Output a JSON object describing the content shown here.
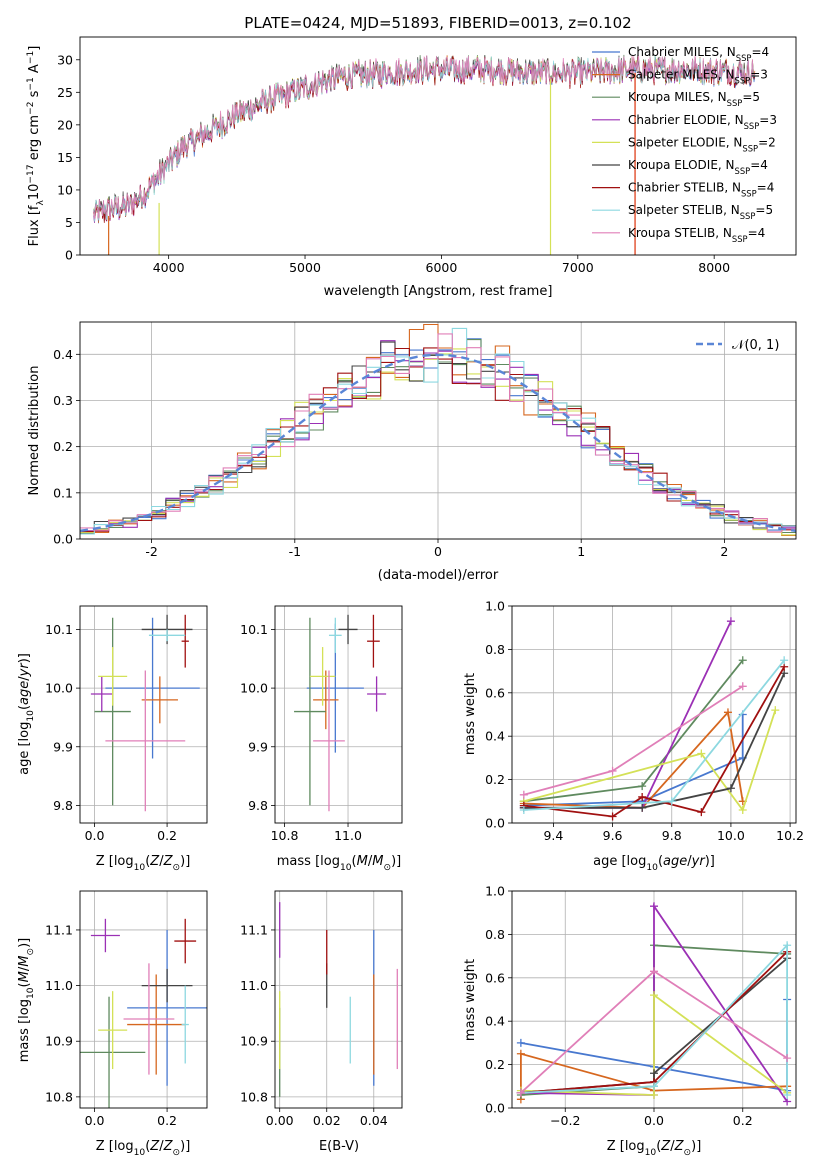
{
  "palette": [
    "#4878cf",
    "#d6671f",
    "#5f8a5f",
    "#9b30b5",
    "#d4e157",
    "#444444",
    "#a01010",
    "#8dd8e0",
    "#e07fb8"
  ],
  "chart_data": [
    {
      "id": "spectrum",
      "type": "line",
      "title": "PLATE=0424, MJD=51893, FIBERID=0013, z=0.102",
      "xlabel": "wavelength [Angstrom, rest frame]",
      "ylabel": "Flux [f_λ 10^-17 erg cm^-2 s^-1 A^-1]",
      "xlim": [
        3350,
        8600
      ],
      "ylim": [
        0,
        33.5
      ],
      "xticks": [
        4000,
        5000,
        6000,
        7000,
        8000
      ],
      "yticks": [
        0,
        5,
        10,
        15,
        20,
        25,
        30
      ],
      "continuum": [
        [
          3450,
          6.2
        ],
        [
          3550,
          7.0
        ],
        [
          3700,
          7.5
        ],
        [
          3800,
          9.0
        ],
        [
          3900,
          11.5
        ],
        [
          4000,
          14.0
        ],
        [
          4100,
          16.5
        ],
        [
          4300,
          19.0
        ],
        [
          4500,
          21.5
        ],
        [
          4700,
          23.5
        ],
        [
          4900,
          25.0
        ],
        [
          5100,
          26.5
        ],
        [
          5300,
          27.5
        ],
        [
          5600,
          28.0
        ],
        [
          5900,
          28.5
        ],
        [
          6300,
          28.5
        ],
        [
          6700,
          28.0
        ],
        [
          7000,
          28.0
        ],
        [
          7400,
          28.5
        ],
        [
          7800,
          28.5
        ],
        [
          8300,
          28.0
        ]
      ],
      "series": [
        {
          "name": "Chabrier MILES, N_SSP=4",
          "legend": "Chabrier MILES, N",
          "sub": "SSP",
          "suffix": "=4"
        },
        {
          "name": "Salpeter MILES, N_SSP=3",
          "legend": "Salpeter MILES, N",
          "sub": "SSP",
          "suffix": "=3"
        },
        {
          "name": "Kroupa MILES, N_SSP=5",
          "legend": "Kroupa MILES, N",
          "sub": "SSP",
          "suffix": "=5"
        },
        {
          "name": "Chabrier ELODIE, N_SSP=3",
          "legend": "Chabrier ELODIE, N",
          "sub": "SSP",
          "suffix": "=3"
        },
        {
          "name": "Salpeter ELODIE, N_SSP=2",
          "legend": "Salpeter ELODIE, N",
          "sub": "SSP",
          "suffix": "=2"
        },
        {
          "name": "Kroupa ELODIE, N_SSP=4",
          "legend": "Kroupa ELODIE, N",
          "sub": "SSP",
          "suffix": "=4"
        },
        {
          "name": "Chabrier STELIB, N_SSP=4",
          "legend": "Chabrier STELIB, N",
          "sub": "SSP",
          "suffix": "=4"
        },
        {
          "name": "Salpeter STELIB, N_SSP=5",
          "legend": "Salpeter STELIB, N",
          "sub": "SSP",
          "suffix": "=5"
        },
        {
          "name": "Kroupa STELIB, N_SSP=4",
          "legend": "Kroupa STELIB, N",
          "sub": "SSP",
          "suffix": "=4"
        }
      ],
      "legend": "top-right",
      "grid": false
    },
    {
      "id": "residuals",
      "type": "line",
      "xlabel": "(data-model)/error",
      "ylabel": "Normed distribution",
      "xlim": [
        -2.5,
        2.5
      ],
      "ylim": [
        0,
        0.47
      ],
      "xticks": [
        -2,
        -1,
        0,
        1,
        2
      ],
      "yticks": [
        0.0,
        0.1,
        0.2,
        0.3,
        0.4
      ],
      "reference_series": "𝒩(0, 1)",
      "legend": "top-right",
      "grid": true
    },
    {
      "id": "age-vs-Z",
      "type": "scatter",
      "xlabel": "Z [log10(Z/Z⊙)]",
      "ylabel": "age [log10(age/yr)]",
      "xlim": [
        -0.04,
        0.31
      ],
      "ylim": [
        9.77,
        10.14
      ],
      "xticks": [
        0.0,
        0.2
      ],
      "yticks": [
        9.8,
        9.9,
        10.0,
        10.1
      ],
      "points": [
        {
          "x": 0.16,
          "y": 10.0,
          "xerr": 0.13,
          "yerr": 0.12
        },
        {
          "x": 0.18,
          "y": 9.98,
          "xerr": 0.05,
          "yerr": 0.04
        },
        {
          "x": 0.05,
          "y": 9.96,
          "xerr": 0.05,
          "yerr": 0.16
        },
        {
          "x": 0.02,
          "y": 9.99,
          "xerr": 0.03,
          "yerr": 0.03
        },
        {
          "x": 0.05,
          "y": 10.02,
          "xerr": 0.04,
          "yerr": 0.05
        },
        {
          "x": 0.2,
          "y": 10.1,
          "xerr": 0.07,
          "yerr": 0.025
        },
        {
          "x": 0.25,
          "y": 10.08,
          "xerr": 0.01,
          "yerr": 0.045
        },
        {
          "x": 0.2,
          "y": 10.09,
          "xerr": 0.05,
          "yerr": 0.01
        },
        {
          "x": 0.14,
          "y": 9.91,
          "xerr": 0.11,
          "yerr": 0.12
        }
      ],
      "grid": true
    },
    {
      "id": "age-vs-mass",
      "type": "scatter",
      "xlabel": "mass [log10(M/M⊙)]",
      "xlim": [
        10.77,
        11.17
      ],
      "ylim": [
        9.77,
        10.14
      ],
      "xticks": [
        10.8,
        11.0
      ],
      "yticks": [
        9.8,
        9.9,
        10.0,
        10.1
      ],
      "points": [
        {
          "x": 10.96,
          "y": 10.0,
          "xerr": 0.09,
          "yerr": 0.11
        },
        {
          "x": 10.93,
          "y": 9.98,
          "xerr": 0.04,
          "yerr": 0.05
        },
        {
          "x": 10.88,
          "y": 9.96,
          "xerr": 0.05,
          "yerr": 0.16
        },
        {
          "x": 11.09,
          "y": 9.99,
          "xerr": 0.03,
          "yerr": 0.03
        },
        {
          "x": 10.92,
          "y": 10.02,
          "xerr": 0.04,
          "yerr": 0.05
        },
        {
          "x": 11.0,
          "y": 10.1,
          "xerr": 0.03,
          "yerr": 0.025
        },
        {
          "x": 11.08,
          "y": 10.08,
          "xerr": 0.02,
          "yerr": 0.045
        },
        {
          "x": 10.96,
          "y": 10.09,
          "xerr": 0.02,
          "yerr": 0.03
        },
        {
          "x": 10.94,
          "y": 9.91,
          "xerr": 0.05,
          "yerr": 0.12
        }
      ],
      "grid": true
    },
    {
      "id": "weight-vs-age",
      "type": "line",
      "xlabel": "age  [log10(age/yr)]",
      "ylabel": "mass weight",
      "xlim": [
        9.26,
        10.22
      ],
      "ylim": [
        0.0,
        1.0
      ],
      "xticks": [
        9.4,
        9.6,
        9.8,
        10.0,
        10.2
      ],
      "yticks": [
        0.0,
        0.2,
        0.4,
        0.6,
        0.8,
        1.0
      ],
      "series": [
        {
          "x": [
            9.3,
            9.7,
            10.04,
            10.04
          ],
          "y": [
            0.08,
            0.1,
            0.3,
            0.5
          ]
        },
        {
          "x": [
            9.3,
            9.7,
            9.99,
            10.04
          ],
          "y": [
            0.09,
            0.07,
            0.51,
            0.1
          ]
        },
        {
          "x": [
            9.3,
            9.7,
            10.04
          ],
          "y": [
            0.1,
            0.17,
            0.75
          ]
        },
        {
          "x": [
            9.3,
            9.7,
            10.0
          ],
          "y": [
            0.07,
            0.07,
            0.93
          ]
        },
        {
          "x": [
            9.3,
            9.9,
            10.04,
            10.15
          ],
          "y": [
            0.1,
            0.32,
            0.06,
            0.52
          ]
        },
        {
          "x": [
            9.3,
            9.7,
            10.0,
            10.18
          ],
          "y": [
            0.07,
            0.07,
            0.16,
            0.69
          ]
        },
        {
          "x": [
            9.3,
            9.6,
            9.7,
            9.9,
            10.18
          ],
          "y": [
            0.08,
            0.03,
            0.12,
            0.05,
            0.72
          ]
        },
        {
          "x": [
            9.3,
            9.8,
            10.18
          ],
          "y": [
            0.06,
            0.1,
            0.75
          ]
        },
        {
          "x": [
            9.3,
            9.6,
            10.04
          ],
          "y": [
            0.13,
            0.24,
            0.63
          ]
        }
      ],
      "grid": true
    },
    {
      "id": "mass-vs-Z",
      "type": "scatter",
      "xlabel": "Z [log10(Z/Z⊙)]",
      "ylabel": "mass [log10(M/M⊙)]",
      "xlim": [
        -0.04,
        0.31
      ],
      "ylim": [
        10.78,
        11.17
      ],
      "xticks": [
        0.0,
        0.2
      ],
      "yticks": [
        10.8,
        10.9,
        11.0,
        11.1
      ],
      "points": [
        {
          "x": 0.2,
          "y": 10.96,
          "xerr": 0.11,
          "yerr": 0.14
        },
        {
          "x": 0.17,
          "y": 10.93,
          "xerr": 0.08,
          "yerr": 0.09
        },
        {
          "x": 0.04,
          "y": 10.88,
          "xerr": 0.1,
          "yerr": 0.1
        },
        {
          "x": 0.03,
          "y": 11.09,
          "xerr": 0.04,
          "yerr": 0.03
        },
        {
          "x": 0.05,
          "y": 10.92,
          "xerr": 0.04,
          "yerr": 0.07
        },
        {
          "x": 0.2,
          "y": 11.0,
          "xerr": 0.07,
          "yerr": 0.03
        },
        {
          "x": 0.25,
          "y": 11.08,
          "xerr": 0.03,
          "yerr": 0.04
        },
        {
          "x": 0.25,
          "y": 10.93,
          "xerr": 0.01,
          "yerr": 0.07
        },
        {
          "x": 0.15,
          "y": 10.94,
          "xerr": 0.07,
          "yerr": 0.1
        }
      ],
      "grid": true
    },
    {
      "id": "mass-vs-ebv",
      "type": "scatter",
      "xlabel": "E(B-V)",
      "xlim": [
        -0.002,
        0.052
      ],
      "ylim": [
        10.78,
        11.17
      ],
      "xticks": [
        0.0,
        0.02,
        0.04
      ],
      "yticks": [
        10.8,
        10.9,
        11.0,
        11.1
      ],
      "points": [
        {
          "x": 0.04,
          "y": 10.96,
          "xerr": 0,
          "yerr": 0.14
        },
        {
          "x": 0.04,
          "y": 10.93,
          "xerr": 0,
          "yerr": 0.09
        },
        {
          "x": 0.0,
          "y": 10.88,
          "xerr": 0,
          "yerr": 0.08
        },
        {
          "x": 0.0,
          "y": 11.1,
          "xerr": 0,
          "yerr": 0.05
        },
        {
          "x": 0.0,
          "y": 10.92,
          "xerr": 0,
          "yerr": 0.07
        },
        {
          "x": 0.02,
          "y": 11.0,
          "xerr": 0,
          "yerr": 0.04
        },
        {
          "x": 0.02,
          "y": 11.06,
          "xerr": 0,
          "yerr": 0.04
        },
        {
          "x": 0.03,
          "y": 10.92,
          "xerr": 0,
          "yerr": 0.06
        },
        {
          "x": 0.05,
          "y": 10.94,
          "xerr": 0,
          "yerr": 0.09
        }
      ],
      "grid": true
    },
    {
      "id": "weight-vs-Z",
      "type": "line",
      "xlabel": "Z [log10(Z/Z⊙)]",
      "ylabel": "mass weight",
      "xlim": [
        -0.32,
        0.32
      ],
      "ylim": [
        0.0,
        1.0
      ],
      "xticks": [
        -0.2,
        0.0,
        0.2
      ],
      "yticks": [
        0.0,
        0.2,
        0.4,
        0.6,
        0.8,
        1.0
      ],
      "series": [
        {
          "x": [
            -0.3,
            0.0,
            0.3,
            0.3
          ],
          "y": [
            0.3,
            0.19,
            0.08,
            0.5
          ]
        },
        {
          "x": [
            -0.3,
            -0.3,
            0.0,
            0.3
          ],
          "y": [
            0.04,
            0.25,
            0.08,
            0.1
          ]
        },
        {
          "x": [
            -0.3,
            0.0,
            0.0,
            0.3
          ],
          "y": [
            0.06,
            0.1,
            0.75,
            0.71
          ]
        },
        {
          "x": [
            -0.3,
            0.0,
            0.0,
            0.3
          ],
          "y": [
            0.07,
            0.06,
            0.93,
            0.03
          ]
        },
        {
          "x": [
            -0.3,
            0.0,
            0.0,
            0.3
          ],
          "y": [
            0.08,
            0.06,
            0.52,
            0.07
          ]
        },
        {
          "x": [
            -0.3,
            0.0,
            0.0,
            0.3
          ],
          "y": [
            0.07,
            0.12,
            0.16,
            0.69
          ]
        },
        {
          "x": [
            -0.3,
            0.0,
            0.3
          ],
          "y": [
            0.07,
            0.12,
            0.72
          ]
        },
        {
          "x": [
            -0.3,
            0.0,
            0.3,
            0.3
          ],
          "y": [
            0.07,
            0.1,
            0.75,
            0.06
          ]
        },
        {
          "x": [
            -0.3,
            0.0,
            0.3
          ],
          "y": [
            0.07,
            0.63,
            0.23
          ]
        }
      ],
      "grid": true
    }
  ]
}
